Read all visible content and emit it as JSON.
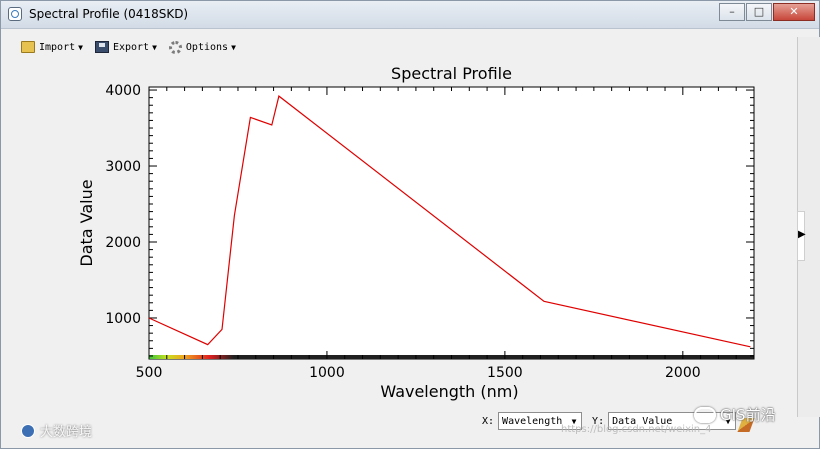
{
  "window": {
    "title": "Spectral Profile (0418SKD)",
    "controls": {
      "minimize": "–",
      "maximize": "□",
      "close": "✕"
    }
  },
  "toolbar": {
    "import_label": "Import",
    "export_label": "Export",
    "options_label": "Options",
    "icons": {
      "import": "folder-icon",
      "export": "save-icon",
      "options": "gear-icon"
    }
  },
  "chart_data": {
    "type": "line",
    "title": "Spectral Profile",
    "xlabel": "Wavelength (nm)",
    "ylabel": "Data Value",
    "xlim": [
      500,
      2200
    ],
    "ylim": [
      460,
      4040
    ],
    "xticks": [
      500,
      1000,
      1500,
      2000
    ],
    "yticks": [
      1000,
      2000,
      3000,
      4000
    ],
    "grid": false,
    "line_color": "#e00000",
    "series": [
      {
        "x": [
          500,
          665,
          705,
          740,
          785,
          845,
          865,
          1610,
          2190
        ],
        "y": [
          1000,
          650,
          850,
          2350,
          3640,
          3540,
          3920,
          1220,
          620
        ]
      }
    ]
  },
  "axis_selectors": {
    "x_label": "X:",
    "x_value": "Wavelength",
    "y_label": "Y:",
    "y_value": "Data Value"
  },
  "watermarks": {
    "left": "大数跨境",
    "right": "GIS前沿",
    "url": "https://blog.csdn.net/weixin_4"
  },
  "side_arrow": "▶"
}
